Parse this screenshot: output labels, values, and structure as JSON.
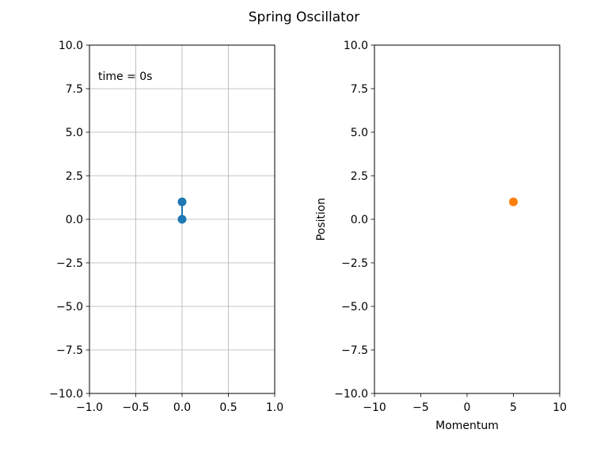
{
  "figure": {
    "suptitle": "Spring Oscillator",
    "background": "#ffffff"
  },
  "chart_data": [
    {
      "type": "line",
      "title": "",
      "xlabel": "",
      "ylabel": "",
      "xlim": [
        -1.0,
        1.0
      ],
      "ylim": [
        -10.0,
        10.0
      ],
      "xticks": [
        -1.0,
        -0.5,
        0.0,
        0.5,
        1.0
      ],
      "xtick_labels": [
        "−1.0",
        "−0.5",
        "0.0",
        "0.5",
        "1.0"
      ],
      "yticks": [
        -10.0,
        -7.5,
        -5.0,
        -2.5,
        0.0,
        2.5,
        5.0,
        7.5,
        10.0
      ],
      "ytick_labels": [
        "−10.0",
        "−7.5",
        "−5.0",
        "−2.5",
        "0.0",
        "2.5",
        "5.0",
        "7.5",
        "10.0"
      ],
      "grid": true,
      "annotation": "time = 0s",
      "annotation_placement": "top-left",
      "series": [
        {
          "x": [
            0.0,
            0.0
          ],
          "y": [
            0.0,
            1.0
          ],
          "color": "#1f77b4",
          "marker": "circle"
        }
      ]
    },
    {
      "type": "scatter",
      "title": "",
      "xlabel": "Momentum",
      "ylabel": "Position",
      "xlim": [
        -10,
        10
      ],
      "ylim": [
        -10.0,
        10.0
      ],
      "xticks": [
        -10,
        -5,
        0,
        5,
        10
      ],
      "xtick_labels": [
        "−10",
        "−5",
        "0",
        "5",
        "10"
      ],
      "yticks": [
        -10.0,
        -7.5,
        -5.0,
        -2.5,
        0.0,
        2.5,
        5.0,
        7.5,
        10.0
      ],
      "ytick_labels": [
        "−10.0",
        "−7.5",
        "−5.0",
        "−2.5",
        "0.0",
        "2.5",
        "5.0",
        "7.5",
        "10.0"
      ],
      "grid": false,
      "series": [
        {
          "x": [
            5.0
          ],
          "y": [
            1.0
          ],
          "color": "#ff7f0e",
          "marker": "circle"
        }
      ]
    }
  ]
}
